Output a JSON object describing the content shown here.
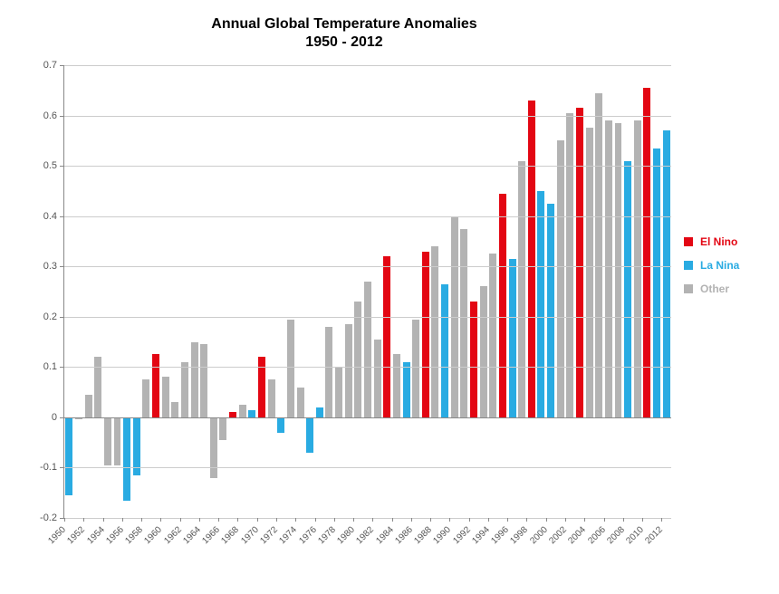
{
  "chart": {
    "type": "bar",
    "title_line1": "Annual Global Temperature Anomalies",
    "title_line2": "1950 - 2012",
    "title_fontsize": 16,
    "title_weight": "bold",
    "background_color": "#ffffff",
    "grid_color": "#cccccc",
    "axis_color": "#888888",
    "label_color": "#555555",
    "label_fontsize": 11,
    "x_tick_rotation": -45,
    "ylim": [
      -0.2,
      0.7
    ],
    "ytick_step": 0.1,
    "yticks": [
      "-0.2",
      "-0.1",
      "0",
      "0.1",
      "0.2",
      "0.3",
      "0.4",
      "0.5",
      "0.6",
      "0.7"
    ],
    "x_label_step": 2,
    "bar_gap_ratio": 0.25,
    "series": {
      "el_nino": {
        "label": "El Nino",
        "color": "#e30613"
      },
      "la_nina": {
        "label": "La Nina",
        "color": "#29abe2"
      },
      "other": {
        "label": "Other",
        "color": "#b3b3b3"
      }
    },
    "legend_order": [
      "el_nino",
      "la_nina",
      "other"
    ],
    "legend_fontsize": 12,
    "legend_weight": "bold",
    "data": [
      {
        "year": 1950,
        "value": -0.155,
        "cat": "la_nina"
      },
      {
        "year": 1951,
        "value": -0.003,
        "cat": "other"
      },
      {
        "year": 1952,
        "value": 0.045,
        "cat": "other"
      },
      {
        "year": 1953,
        "value": 0.12,
        "cat": "other"
      },
      {
        "year": 1954,
        "value": -0.095,
        "cat": "other"
      },
      {
        "year": 1955,
        "value": -0.095,
        "cat": "other"
      },
      {
        "year": 1956,
        "value": -0.165,
        "cat": "la_nina"
      },
      {
        "year": 1957,
        "value": -0.115,
        "cat": "la_nina"
      },
      {
        "year": 1958,
        "value": 0.075,
        "cat": "other"
      },
      {
        "year": 1959,
        "value": 0.125,
        "cat": "el_nino"
      },
      {
        "year": 1960,
        "value": 0.08,
        "cat": "other"
      },
      {
        "year": 1961,
        "value": 0.03,
        "cat": "other"
      },
      {
        "year": 1962,
        "value": 0.11,
        "cat": "other"
      },
      {
        "year": 1963,
        "value": 0.15,
        "cat": "other"
      },
      {
        "year": 1964,
        "value": 0.145,
        "cat": "other"
      },
      {
        "year": 1965,
        "value": -0.12,
        "cat": "other"
      },
      {
        "year": 1966,
        "value": -0.045,
        "cat": "other"
      },
      {
        "year": 1967,
        "value": 0.01,
        "cat": "el_nino"
      },
      {
        "year": 1968,
        "value": 0.025,
        "cat": "other"
      },
      {
        "year": 1969,
        "value": 0.015,
        "cat": "la_nina"
      },
      {
        "year": 1970,
        "value": 0.12,
        "cat": "el_nino"
      },
      {
        "year": 1971,
        "value": 0.075,
        "cat": "other"
      },
      {
        "year": 1972,
        "value": -0.03,
        "cat": "la_nina"
      },
      {
        "year": 1973,
        "value": 0.195,
        "cat": "other"
      },
      {
        "year": 1974,
        "value": 0.06,
        "cat": "other"
      },
      {
        "year": 1975,
        "value": -0.07,
        "cat": "la_nina"
      },
      {
        "year": 1976,
        "value": 0.02,
        "cat": "la_nina"
      },
      {
        "year": 1977,
        "value": 0.18,
        "cat": "other"
      },
      {
        "year": 1978,
        "value": 0.1,
        "cat": "other"
      },
      {
        "year": 1979,
        "value": 0.185,
        "cat": "other"
      },
      {
        "year": 1980,
        "value": 0.23,
        "cat": "other"
      },
      {
        "year": 1981,
        "value": 0.27,
        "cat": "other"
      },
      {
        "year": 1982,
        "value": 0.155,
        "cat": "other"
      },
      {
        "year": 1983,
        "value": 0.32,
        "cat": "el_nino"
      },
      {
        "year": 1984,
        "value": 0.125,
        "cat": "other"
      },
      {
        "year": 1985,
        "value": 0.11,
        "cat": "la_nina"
      },
      {
        "year": 1986,
        "value": 0.195,
        "cat": "other"
      },
      {
        "year": 1987,
        "value": 0.33,
        "cat": "el_nino"
      },
      {
        "year": 1988,
        "value": 0.34,
        "cat": "other"
      },
      {
        "year": 1989,
        "value": 0.265,
        "cat": "la_nina"
      },
      {
        "year": 1990,
        "value": 0.4,
        "cat": "other"
      },
      {
        "year": 1991,
        "value": 0.375,
        "cat": "other"
      },
      {
        "year": 1992,
        "value": 0.23,
        "cat": "el_nino"
      },
      {
        "year": 1993,
        "value": 0.26,
        "cat": "other"
      },
      {
        "year": 1994,
        "value": 0.325,
        "cat": "other"
      },
      {
        "year": 1995,
        "value": 0.445,
        "cat": "el_nino"
      },
      {
        "year": 1996,
        "value": 0.315,
        "cat": "la_nina"
      },
      {
        "year": 1997,
        "value": 0.51,
        "cat": "other"
      },
      {
        "year": 1998,
        "value": 0.63,
        "cat": "el_nino"
      },
      {
        "year": 1999,
        "value": 0.45,
        "cat": "la_nina"
      },
      {
        "year": 2000,
        "value": 0.425,
        "cat": "la_nina"
      },
      {
        "year": 2001,
        "value": 0.55,
        "cat": "other"
      },
      {
        "year": 2002,
        "value": 0.605,
        "cat": "other"
      },
      {
        "year": 2003,
        "value": 0.615,
        "cat": "el_nino"
      },
      {
        "year": 2004,
        "value": 0.575,
        "cat": "other"
      },
      {
        "year": 2005,
        "value": 0.645,
        "cat": "other"
      },
      {
        "year": 2006,
        "value": 0.59,
        "cat": "other"
      },
      {
        "year": 2007,
        "value": 0.585,
        "cat": "other"
      },
      {
        "year": 2008,
        "value": 0.51,
        "cat": "la_nina"
      },
      {
        "year": 2009,
        "value": 0.59,
        "cat": "other"
      },
      {
        "year": 2010,
        "value": 0.655,
        "cat": "el_nino"
      },
      {
        "year": 2011,
        "value": 0.535,
        "cat": "la_nina"
      },
      {
        "year": 2012,
        "value": 0.57,
        "cat": "la_nina"
      }
    ]
  }
}
